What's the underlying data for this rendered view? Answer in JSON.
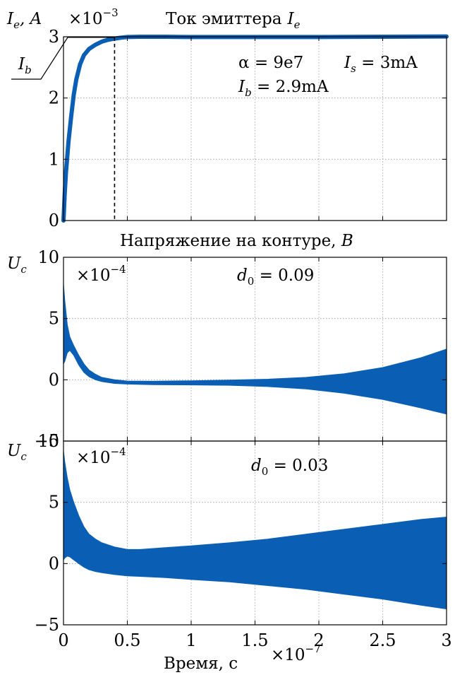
{
  "chart_data": [
    {
      "type": "line",
      "title": "Ток эмиттера",
      "title_symbol": "I",
      "title_sub": "e",
      "ylabel": "I",
      "ylabel_sub": "e",
      "ylabel_unit": ", A",
      "y_multiplier": "×10",
      "y_multiplier_exp": "−3",
      "xlim": [
        0,
        3
      ],
      "ylim": [
        0,
        3
      ],
      "yticks": [
        "0",
        "1",
        "2",
        "3"
      ],
      "series": [
        {
          "color": "#0a5fb4",
          "x": [
            0,
            0.01,
            0.02,
            0.04,
            0.06,
            0.08,
            0.1,
            0.13,
            0.16,
            0.2,
            0.25,
            0.3,
            0.35,
            0.4,
            0.45,
            0.5,
            0.6,
            0.7,
            0.8,
            1.0,
            1.5,
            2.0,
            2.5,
            3.0
          ],
          "y": [
            0,
            0.45,
            0.8,
            1.3,
            1.7,
            2.05,
            2.3,
            2.55,
            2.7,
            2.8,
            2.87,
            2.92,
            2.95,
            2.97,
            2.985,
            2.995,
            3.0,
            3.0,
            3.0,
            2.995,
            2.995,
            2.995,
            3.0,
            3.005
          ]
        }
      ],
      "marker_x": 0.4,
      "marker_label": "I",
      "marker_label_sub": "b",
      "annotations": {
        "alpha": "α = 9e7",
        "is_sym": "I",
        "is_sub": "s",
        "is_val": " = 3mA",
        "ib_sym": "I",
        "ib_sub": "b",
        "ib_val": " = 2.9mA"
      }
    },
    {
      "type": "area",
      "title": "Напряжение на контуре, ",
      "title_unit": "B",
      "ylabel": "U",
      "ylabel_sub": "c",
      "y_multiplier": "×10",
      "y_multiplier_exp": "−4",
      "xlim": [
        0,
        3
      ],
      "ylim": [
        -5,
        10
      ],
      "yticks": [
        "−5",
        "0",
        "5",
        "10"
      ],
      "param": "d",
      "param_sub": "0",
      "param_val": " = 0.09",
      "series": [
        {
          "color": "#0a5fb4",
          "x": [
            0,
            0.01,
            0.03,
            0.05,
            0.08,
            0.12,
            0.16,
            0.2,
            0.25,
            0.3,
            0.4,
            0.5,
            0.7,
            1.0,
            1.3,
            1.6,
            1.9,
            2.2,
            2.5,
            2.8,
            3.0
          ],
          "upper": [
            7.8,
            6.5,
            4.5,
            3.5,
            2.8,
            2.0,
            1.3,
            0.8,
            0.45,
            0.2,
            0.0,
            -0.1,
            -0.12,
            -0.08,
            -0.02,
            0.05,
            0.2,
            0.5,
            1.0,
            1.8,
            2.5
          ],
          "lower": [
            1.3,
            1.5,
            2.2,
            2.4,
            2.0,
            1.2,
            0.6,
            0.25,
            0.0,
            -0.15,
            -0.3,
            -0.35,
            -0.4,
            -0.42,
            -0.45,
            -0.55,
            -0.75,
            -1.1,
            -1.6,
            -2.3,
            -2.8
          ]
        }
      ]
    },
    {
      "type": "area",
      "ylabel": "U",
      "ylabel_sub": "c",
      "y_multiplier": "×10",
      "y_multiplier_exp": "−4",
      "xlim": [
        0,
        3
      ],
      "ylim": [
        -5,
        10
      ],
      "yticks": [
        "−5",
        "0",
        "5",
        "10"
      ],
      "xticks": [
        "0",
        "0.5",
        "1",
        "1.5",
        "2",
        "2.5",
        "3"
      ],
      "xlabel": "Время, с",
      "x_multiplier": "×10",
      "x_multiplier_exp": "−7",
      "param": "d",
      "param_sub": "0",
      "param_val": " = 0.03",
      "series": [
        {
          "color": "#0a5fb4",
          "x": [
            0,
            0.01,
            0.03,
            0.05,
            0.08,
            0.12,
            0.16,
            0.2,
            0.25,
            0.3,
            0.4,
            0.5,
            0.6,
            0.8,
            1.0,
            1.3,
            1.6,
            1.9,
            2.2,
            2.5,
            2.8,
            3.0
          ],
          "upper": [
            9.2,
            8.3,
            7.0,
            6.0,
            5.0,
            3.9,
            3.0,
            2.4,
            2.0,
            1.7,
            1.35,
            1.15,
            1.15,
            1.3,
            1.45,
            1.7,
            2.0,
            2.4,
            2.8,
            3.2,
            3.6,
            3.8
          ],
          "lower": [
            0.3,
            0.45,
            0.6,
            0.55,
            0.3,
            0.0,
            -0.3,
            -0.5,
            -0.65,
            -0.75,
            -0.9,
            -1.0,
            -1.05,
            -1.15,
            -1.3,
            -1.5,
            -1.8,
            -2.1,
            -2.5,
            -2.9,
            -3.4,
            -3.7
          ]
        }
      ]
    }
  ]
}
